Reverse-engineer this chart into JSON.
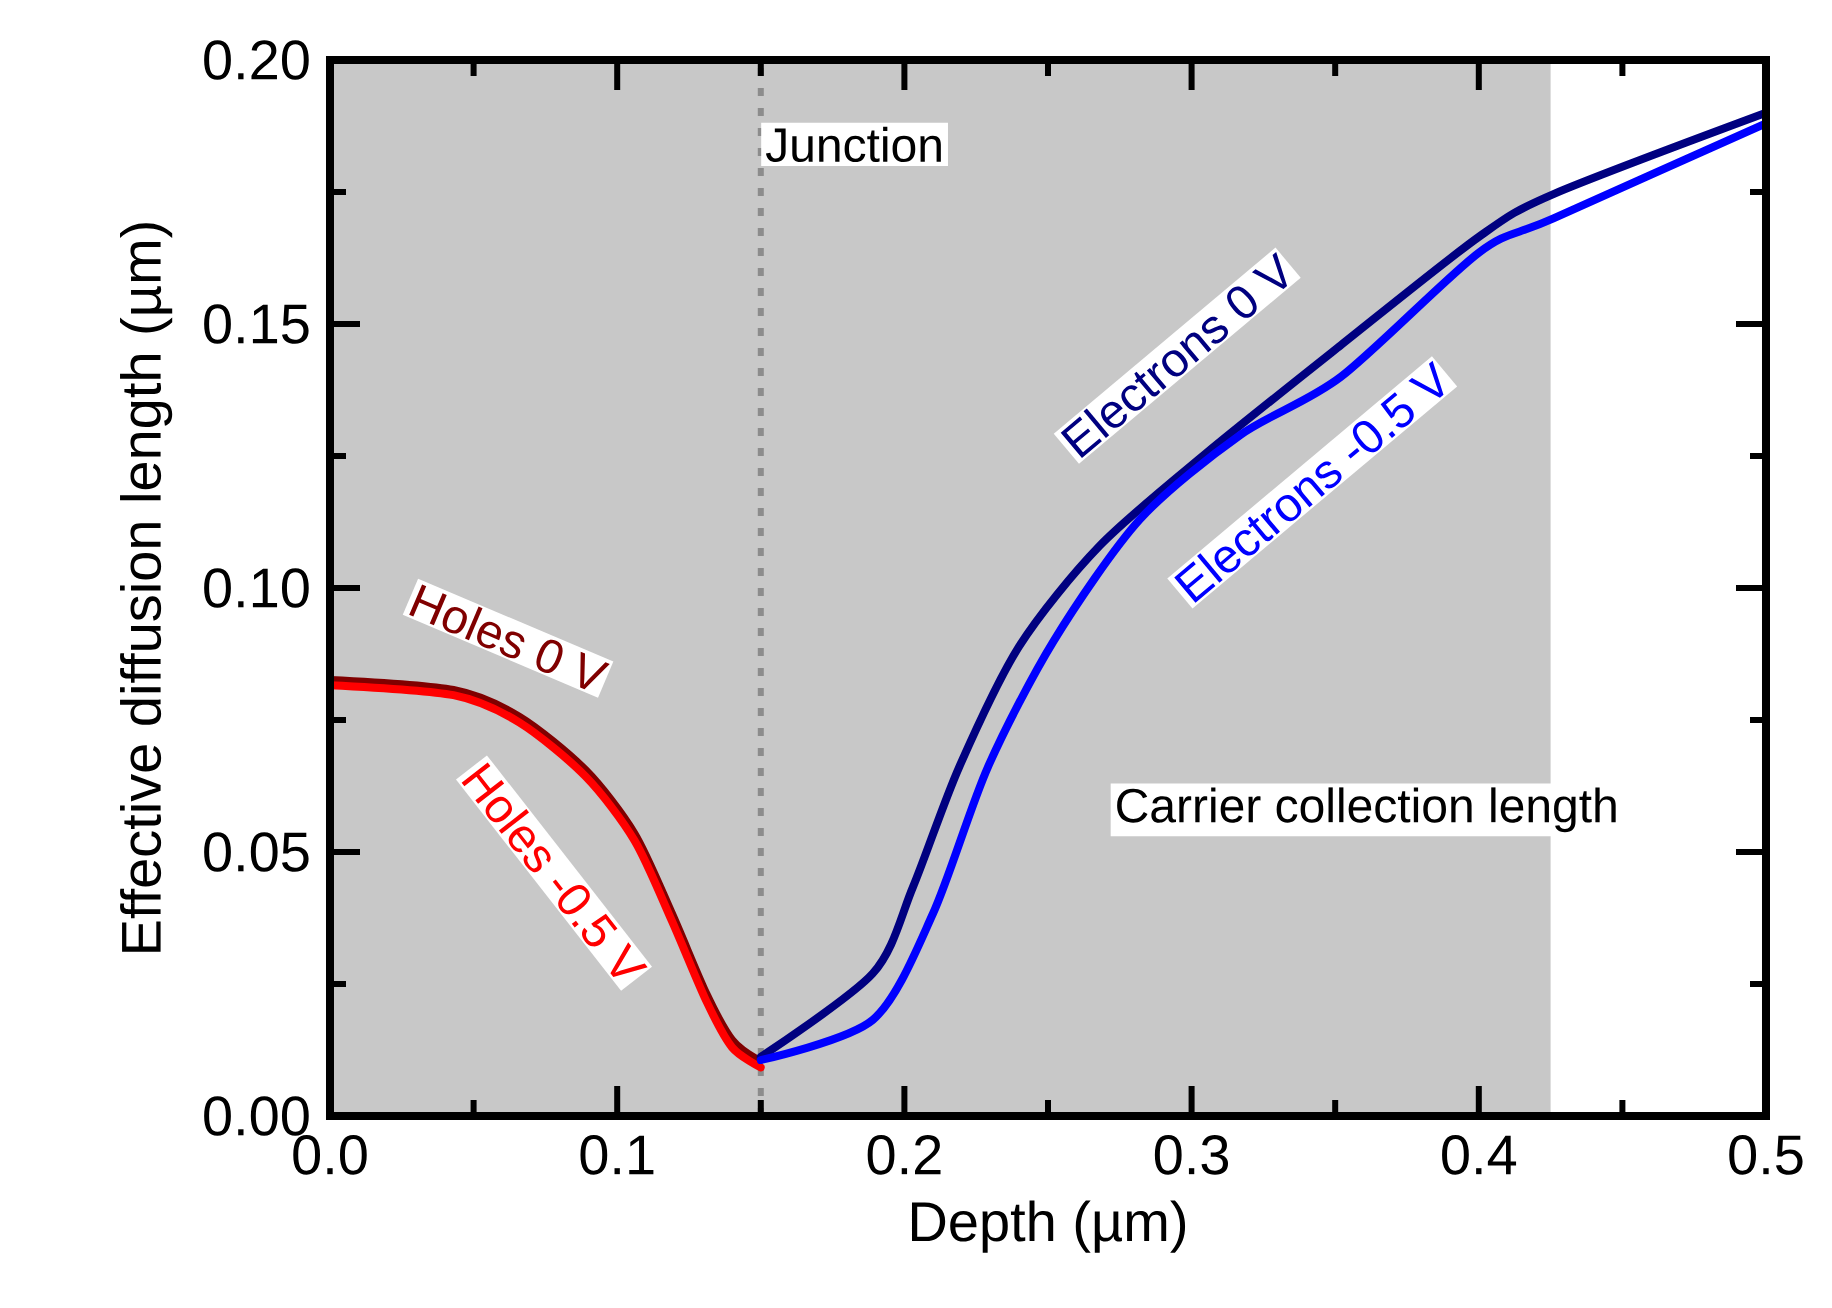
{
  "chart_data": {
    "type": "line",
    "xlabel": "Depth (µm)",
    "ylabel": "Effective diffusion length (µm)",
    "xlim": [
      0,
      0.5
    ],
    "ylim": [
      0,
      0.2
    ],
    "xticks": [
      {
        "value": 0,
        "label": "0.0"
      },
      {
        "value": 0.1,
        "label": "0.1"
      },
      {
        "value": 0.2,
        "label": "0.2"
      },
      {
        "value": 0.3,
        "label": "0.3"
      },
      {
        "value": 0.4,
        "label": "0.4"
      },
      {
        "value": 0.5,
        "label": "0.5"
      }
    ],
    "yticks": [
      {
        "value": 0,
        "label": "0.00"
      },
      {
        "value": 0.05,
        "label": "0.05"
      },
      {
        "value": 0.1,
        "label": "0.10"
      },
      {
        "value": 0.15,
        "label": "0.15"
      },
      {
        "value": 0.2,
        "label": "0.20"
      }
    ],
    "grid": false,
    "marker": "none",
    "line_style": "solid",
    "series": [
      {
        "name": "Holes 0 V",
        "color": "#800000",
        "x": [
          0,
          0.043,
          0.066,
          0.089,
          0.106,
          0.119,
          0.131,
          0.14,
          0.149
        ],
        "values": [
          0.0826,
          0.0807,
          0.0756,
          0.0655,
          0.0535,
          0.0384,
          0.0232,
          0.0144,
          0.0106
        ]
      },
      {
        "name": "Holes -0.5 V",
        "color": "#ff0000",
        "x": [
          0,
          0.043,
          0.066,
          0.089,
          0.106,
          0.119,
          0.131,
          0.14,
          0.15
        ],
        "values": [
          0.0816,
          0.0797,
          0.0745,
          0.0643,
          0.0522,
          0.037,
          0.0218,
          0.013,
          0.0092
        ]
      },
      {
        "name": "Electrons 0 V",
        "color": "#000080",
        "x": [
          0.15,
          0.189,
          0.203,
          0.219,
          0.24,
          0.268,
          0.305,
          0.352,
          0.4,
          0.426,
          0.5
        ],
        "values": [
          0.0112,
          0.027,
          0.0434,
          0.066,
          0.089,
          0.108,
          0.1255,
          0.146,
          0.1665,
          0.1746,
          0.19
        ]
      },
      {
        "name": "Electrons -0.5 V",
        "color": "#0000ff",
        "x": [
          0.15,
          0.189,
          0.21,
          0.229,
          0.252,
          0.282,
          0.317,
          0.352,
          0.4,
          0.426,
          0.5
        ],
        "values": [
          0.0106,
          0.0182,
          0.0384,
          0.066,
          0.09,
          0.113,
          0.129,
          0.14,
          0.1635,
          0.17,
          0.188
        ]
      }
    ],
    "ref_lines": [
      {
        "axis": "x",
        "value": 0.15,
        "label": "Junction",
        "color": "#8c8c8c",
        "line_style": "dotted"
      }
    ],
    "bands": [
      {
        "axis": "x",
        "from": 0,
        "to": 0.425,
        "label": "Carrier collection length",
        "color": "#c8c8c8"
      }
    ]
  }
}
